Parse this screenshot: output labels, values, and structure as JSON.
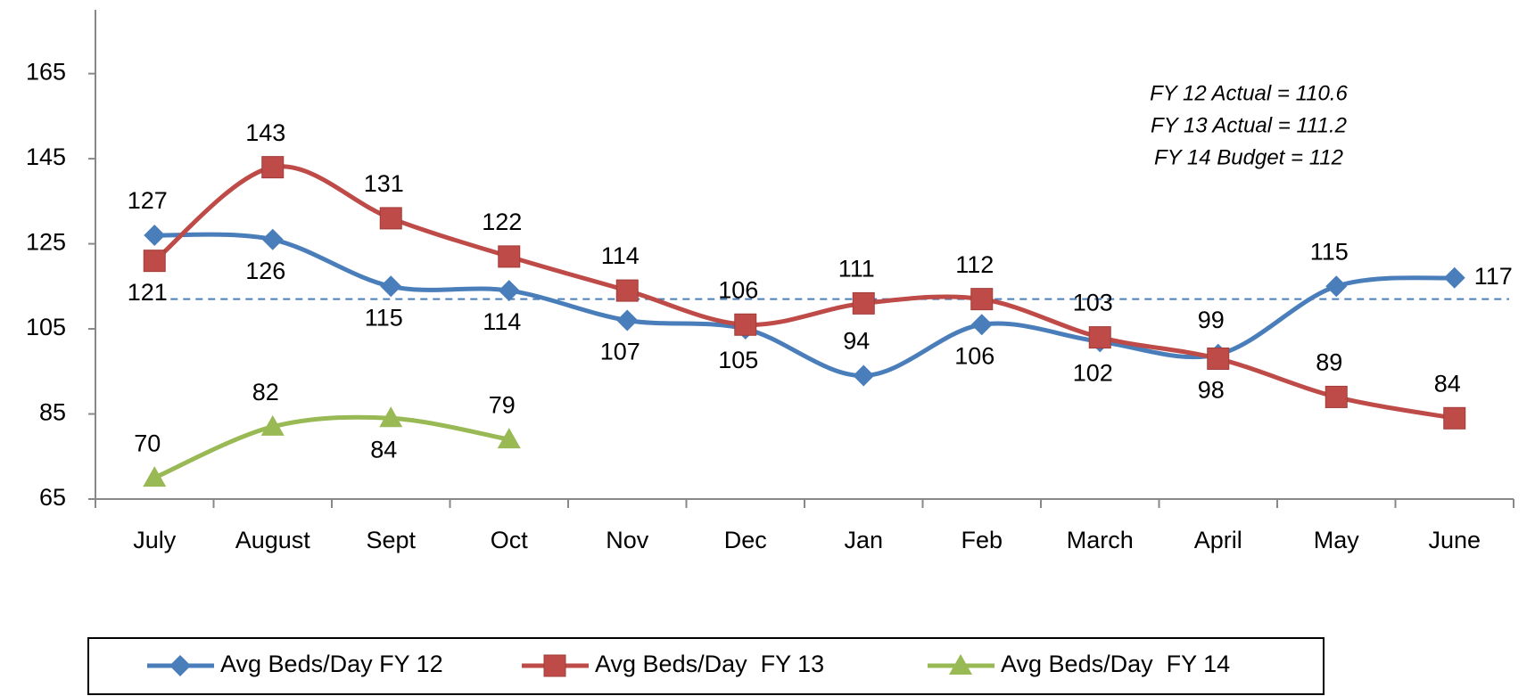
{
  "chart_data": {
    "type": "line",
    "categories": [
      "July",
      "August",
      "Sept",
      "Oct",
      "Nov",
      "Dec",
      "Jan",
      "Feb",
      "March",
      "April",
      "May",
      "June"
    ],
    "series": [
      {
        "name": "Avg Beds/Day FY 12",
        "color": "#4a7ebb",
        "marker": "diamond",
        "values": [
          127,
          126,
          115,
          114,
          107,
          105,
          94,
          106,
          102,
          99,
          115,
          117
        ]
      },
      {
        "name": "Avg Beds/Day  FY 13",
        "color": "#be4b48",
        "marker": "square",
        "values": [
          121,
          143,
          131,
          122,
          114,
          106,
          111,
          112,
          103,
          98,
          89,
          84
        ]
      },
      {
        "name": "Avg Beds/Day  FY 14",
        "color": "#98b954",
        "marker": "triangle",
        "values": [
          70,
          82,
          84,
          79,
          null,
          null,
          null,
          null,
          null,
          null,
          null,
          null
        ]
      }
    ],
    "reference_line": {
      "value": 112,
      "color": "#4a7ebb",
      "style": "dashed"
    },
    "annotations": [
      "FY 12 Actual = 110.6",
      "FY 13 Actual =  111.2",
      "FY 14 Budget = 112"
    ],
    "ylim": [
      65,
      180
    ],
    "yticks": [
      65,
      85,
      105,
      125,
      145,
      165
    ],
    "grid": false,
    "legend": "bottom"
  }
}
